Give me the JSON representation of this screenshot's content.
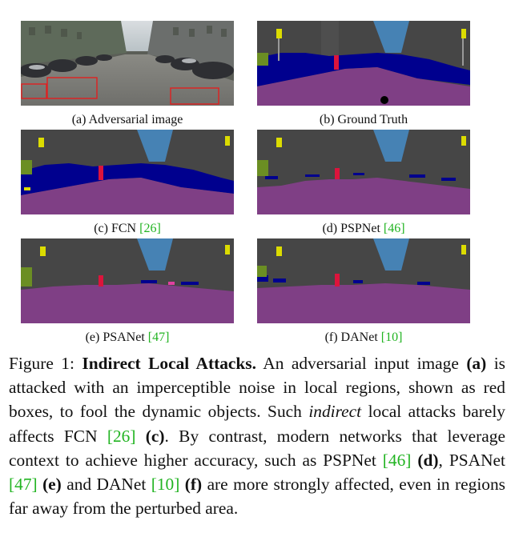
{
  "panels": [
    {
      "id": "a",
      "caption_label": "(a) Adversarial image",
      "cite": ""
    },
    {
      "id": "b",
      "caption_label": "(b) Ground Truth",
      "cite": ""
    },
    {
      "id": "c",
      "caption_label": "(c) FCN ",
      "cite": "[26]"
    },
    {
      "id": "d",
      "caption_label": "(d) PSPNet ",
      "cite": "[46]"
    },
    {
      "id": "e",
      "caption_label": "(e) PSANet ",
      "cite": "[47]"
    },
    {
      "id": "f",
      "caption_label": "(f) DANet ",
      "cite": "[10]"
    }
  ],
  "caption": {
    "prefix": "Figure 1: ",
    "title": "Indirect Local Attacks.",
    "t1": " An adversarial input image ",
    "a": "(a)",
    "t2": " is attacked with an imperceptible noise in local regions, shown as red boxes, to fool the dynamic objects. Such ",
    "indirect": "indirect",
    "t3": " local attacks barely affects FCN ",
    "cite26": "[26]",
    "t4": " ",
    "c": "(c)",
    "t5": ". By contrast, modern networks that leverage context to achieve higher accuracy, such as PSPNet ",
    "cite46": "[46]",
    "t6": " ",
    "d": "(d)",
    "t7": ", PSANet ",
    "cite47": "[47]",
    "t8": " ",
    "e": "(e)",
    "t9": " and DANet ",
    "cite10": "[10]",
    "t10": " ",
    "f": "(f)",
    "t11": " are more strongly affected, even in regions far away from the perturbed area."
  },
  "colors": {
    "road": "#7f3f85",
    "building": "#464646",
    "sky": "#4682b4",
    "vegetation": "#6b8e23",
    "car": "#00008e",
    "person": "#dc143c",
    "pole_sign": "#dcdc00",
    "citation": "#22b422",
    "attack_box": "#e02020"
  }
}
